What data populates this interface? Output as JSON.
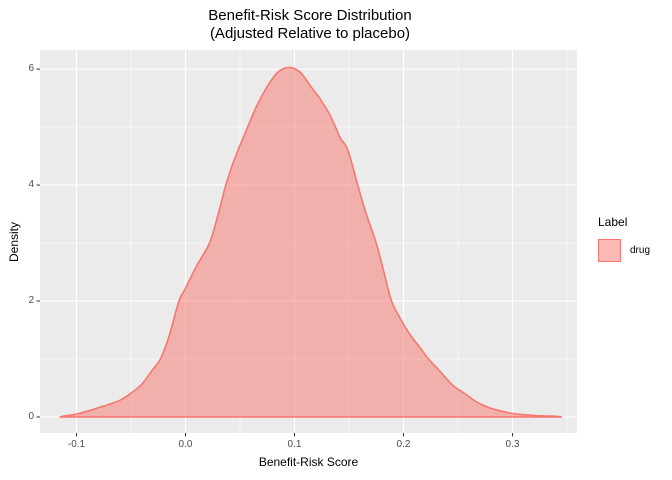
{
  "title": {
    "line1": "Benefit-Risk Score Distribution",
    "line2": "(Adjusted Relative to placebo)"
  },
  "axes": {
    "x_label": "Benefit-Risk Score",
    "y_label": "Density"
  },
  "legend": {
    "title": "Label",
    "items": [
      {
        "label": "drug"
      }
    ]
  },
  "colors": {
    "panel_background": "#EBEBEB",
    "grid": "#FFFFFF",
    "series_stroke": "#F8766D",
    "series_fill": "#F8766D",
    "series_fill_opacity": 0.5,
    "tick_label": "#4D4D4D",
    "tick_mark": "#333333",
    "text": "#000000"
  },
  "chart_data": {
    "type": "area",
    "subtype": "kernel-density",
    "title": "Benefit-Risk Score Distribution",
    "subtitle": "(Adjusted Relative to placebo)",
    "xlabel": "Benefit-Risk Score",
    "ylabel": "Density",
    "xlim": [
      -0.1335,
      0.3592
    ],
    "ylim": [
      -0.276,
      6.33
    ],
    "grid": true,
    "legend_position": "right",
    "x_major_ticks": {
      "values": [
        -0.1,
        0.0,
        0.1,
        0.2,
        0.3
      ],
      "labels": [
        "-0.1",
        "0.0",
        "0.1",
        "0.2",
        "0.3"
      ]
    },
    "x_minor_ticks": [
      -0.05,
      0.05,
      0.15,
      0.25,
      0.35
    ],
    "y_major_ticks": {
      "values": [
        0,
        2,
        4,
        6
      ],
      "labels": [
        "0",
        "2",
        "4",
        "6"
      ]
    },
    "y_minor_ticks": [
      1,
      3,
      5
    ],
    "series": [
      {
        "name": "drug",
        "peak": {
          "x": 0.095,
          "density": 6.03
        },
        "points": [
          [
            -0.115,
            0.0
          ],
          [
            -0.11,
            0.02
          ],
          [
            -0.1,
            0.05
          ],
          [
            -0.09,
            0.1
          ],
          [
            -0.08,
            0.16
          ],
          [
            -0.07,
            0.22
          ],
          [
            -0.06,
            0.29
          ],
          [
            -0.05,
            0.41
          ],
          [
            -0.04,
            0.57
          ],
          [
            -0.03,
            0.82
          ],
          [
            -0.023,
            1.0
          ],
          [
            -0.015,
            1.4
          ],
          [
            -0.006,
            2.0
          ],
          [
            0.0,
            2.22
          ],
          [
            0.01,
            2.6
          ],
          [
            0.022,
            3.0
          ],
          [
            0.03,
            3.5
          ],
          [
            0.037,
            4.0
          ],
          [
            0.045,
            4.45
          ],
          [
            0.057,
            5.0
          ],
          [
            0.065,
            5.35
          ],
          [
            0.075,
            5.7
          ],
          [
            0.085,
            5.95
          ],
          [
            0.095,
            6.03
          ],
          [
            0.105,
            5.95
          ],
          [
            0.115,
            5.7
          ],
          [
            0.123,
            5.5
          ],
          [
            0.131,
            5.26
          ],
          [
            0.137,
            5.03
          ],
          [
            0.142,
            4.81
          ],
          [
            0.149,
            4.6
          ],
          [
            0.158,
            4.0
          ],
          [
            0.165,
            3.55
          ],
          [
            0.175,
            3.0
          ],
          [
            0.182,
            2.5
          ],
          [
            0.189,
            2.0
          ],
          [
            0.197,
            1.7
          ],
          [
            0.205,
            1.45
          ],
          [
            0.215,
            1.2
          ],
          [
            0.223,
            1.0
          ],
          [
            0.232,
            0.82
          ],
          [
            0.245,
            0.55
          ],
          [
            0.255,
            0.42
          ],
          [
            0.267,
            0.26
          ],
          [
            0.28,
            0.15
          ],
          [
            0.29,
            0.1
          ],
          [
            0.3,
            0.06
          ],
          [
            0.31,
            0.04
          ],
          [
            0.32,
            0.025
          ],
          [
            0.33,
            0.018
          ],
          [
            0.34,
            0.012
          ],
          [
            0.345,
            0.0
          ]
        ]
      }
    ]
  }
}
